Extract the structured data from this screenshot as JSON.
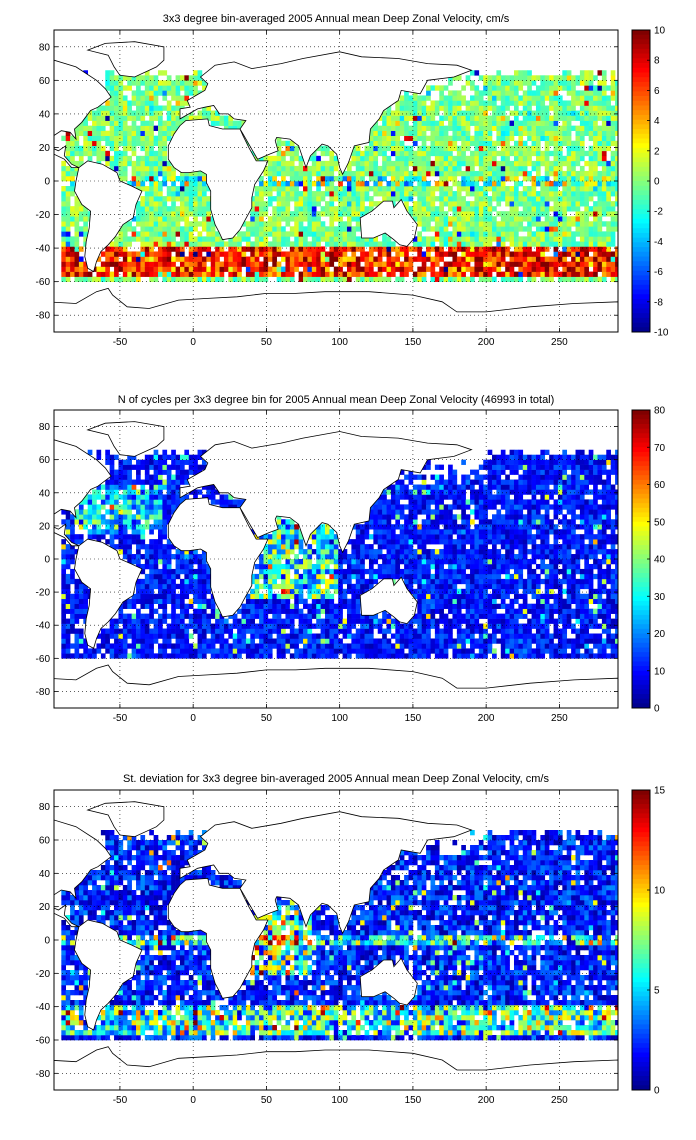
{
  "figure": {
    "panels": [
      {
        "title": "3x3 degree bin-averaged 2005 Annual mean Deep Zonal Velocity, cm/s",
        "colorbar_ticks": [
          "10",
          "8",
          "6",
          "4",
          "2",
          "0",
          "-2",
          "-4",
          "-6",
          "-8",
          "-10"
        ]
      },
      {
        "title": "N of cycles per 3x3 degree bin for 2005 Annual mean Deep Zonal Velocity (46993 in total)",
        "colorbar_ticks": [
          "80",
          "70",
          "60",
          "50",
          "40",
          "30",
          "20",
          "10",
          "0"
        ]
      },
      {
        "title": "St. deviation for 3x3 degree bin-averaged 2005 Annual mean Deep Zonal Velocity, cm/s",
        "colorbar_ticks": [
          "15",
          "10",
          "5",
          "0"
        ]
      }
    ],
    "x_ticks": [
      "-50",
      "0",
      "50",
      "100",
      "150",
      "200",
      "250"
    ],
    "y_ticks": [
      "80",
      "60",
      "40",
      "20",
      "0",
      "-20",
      "-40",
      "-60",
      "-80"
    ]
  },
  "chart_data": [
    {
      "type": "heatmap",
      "title": "3x3 degree bin-averaged 2005 Annual mean Deep Zonal Velocity, cm/s",
      "xlim": [
        -95,
        290
      ],
      "ylim": [
        -90,
        90
      ],
      "bin_size_deg": 3,
      "grid": true,
      "colormap": "jet",
      "clim": [
        -10,
        10
      ],
      "colorbar_ticks": [
        10,
        8,
        6,
        4,
        2,
        0,
        -2,
        -4,
        -6,
        -8,
        -10
      ],
      "regions": [
        {
          "lon": [
            -90,
            290
          ],
          "lat": [
            -60,
            65
          ],
          "typical_value": 0
        },
        {
          "lon": [
            -60,
            90
          ],
          "lat": [
            -55,
            -40
          ],
          "typical_value": 6
        },
        {
          "lon": [
            150,
            290
          ],
          "lat": [
            -60,
            -48
          ],
          "typical_value": 5
        }
      ]
    },
    {
      "type": "heatmap",
      "title": "N of cycles per 3x3 degree bin for 2005 Annual mean Deep Zonal Velocity (46993 in total)",
      "xlim": [
        -95,
        290
      ],
      "ylim": [
        -90,
        90
      ],
      "bin_size_deg": 3,
      "grid": true,
      "colormap": "jet",
      "clim": [
        0,
        80
      ],
      "colorbar_ticks": [
        80,
        70,
        60,
        50,
        40,
        30,
        20,
        10,
        0
      ],
      "total_cycles": 46993,
      "regions": [
        {
          "lon": [
            -90,
            290
          ],
          "lat": [
            -60,
            65
          ],
          "typical_value": 12
        },
        {
          "lon": [
            40,
            100
          ],
          "lat": [
            -20,
            25
          ],
          "typical_value": 40
        },
        {
          "lon": [
            -80,
            -20
          ],
          "lat": [
            20,
            45
          ],
          "typical_value": 35
        }
      ]
    },
    {
      "type": "heatmap",
      "title": "St. deviation for 3x3 degree bin-averaged 2005 Annual mean Deep Zonal Velocity, cm/s",
      "xlim": [
        -95,
        290
      ],
      "ylim": [
        -90,
        90
      ],
      "bin_size_deg": 3,
      "grid": true,
      "colormap": "jet",
      "clim": [
        0,
        15
      ],
      "colorbar_ticks": [
        15,
        10,
        5,
        0
      ],
      "regions": [
        {
          "lon": [
            -90,
            290
          ],
          "lat": [
            -60,
            65
          ],
          "typical_value": 3
        },
        {
          "lon": [
            40,
            75
          ],
          "lat": [
            -15,
            15
          ],
          "typical_value": 9
        },
        {
          "lon": [
            -20,
            100
          ],
          "lat": [
            -50,
            -40
          ],
          "typical_value": 9
        }
      ]
    }
  ]
}
